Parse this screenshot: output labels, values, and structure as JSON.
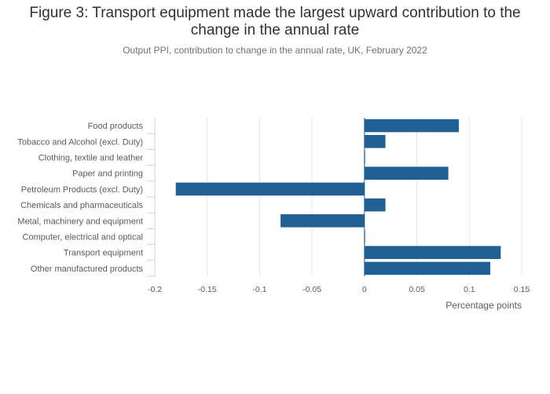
{
  "chart_data": {
    "type": "bar",
    "orientation": "horizontal",
    "title": "Figure 3: Transport equipment made the largest upward contribution to the change in the annual rate",
    "subtitle": "Output PPI, contribution to change in the annual rate, UK, February 2022",
    "xlabel": "Percentage points",
    "ylabel": "",
    "categories": [
      "Food products",
      "Tobacco and Alcohol (excl. Duty)",
      "Clothing, textile and leather",
      "Paper and printing",
      "Petroleum Products (excl. Duty)",
      "Chemicals and pharmaceuticals",
      "Metal, machinery and equipment",
      "Computer, electrical and optical",
      "Transport equipment",
      "Other manufactured products"
    ],
    "values": [
      0.09,
      0.02,
      0.0,
      0.08,
      -0.18,
      0.02,
      -0.08,
      0.0,
      0.13,
      0.12
    ],
    "xlim": [
      -0.2,
      0.15
    ],
    "xticks": [
      -0.2,
      -0.15,
      -0.1,
      -0.05,
      0,
      0.05,
      0.1,
      0.15
    ],
    "xtick_labels": [
      "-0.2",
      "-0.15",
      "-0.1",
      "-0.05",
      "0",
      "0.05",
      "0.1",
      "0.15"
    ],
    "grid": true,
    "legend": "none",
    "bar_color": "#206095",
    "zero_line_color": "#206095"
  }
}
